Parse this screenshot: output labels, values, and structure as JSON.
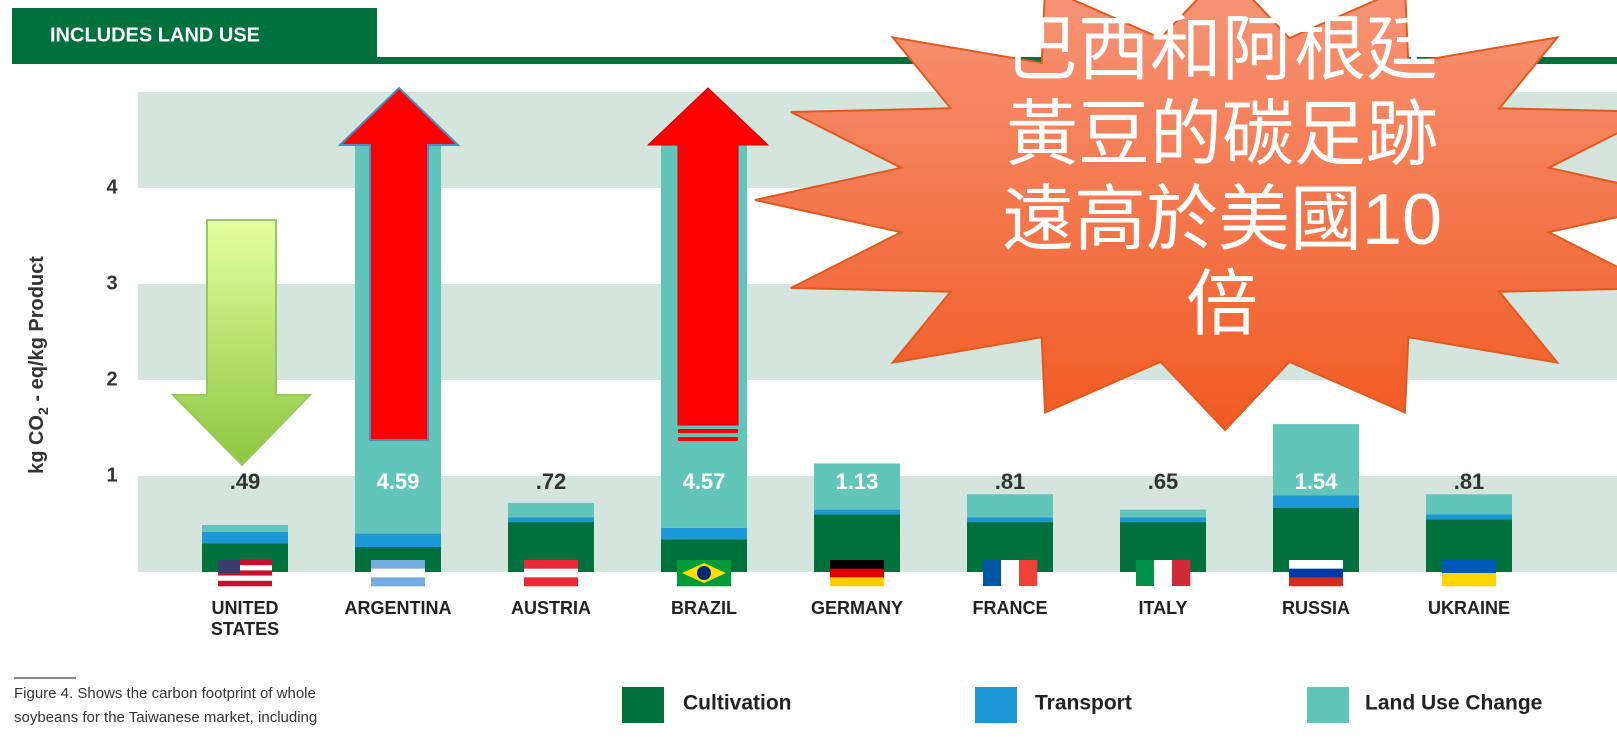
{
  "header": "INCLUDES LAND USE",
  "chart_data": {
    "type": "stacked_bar",
    "ylabel": [
      "kg CO",
      "2",
      " - eq/kg Product"
    ],
    "categories": [
      [
        "UNITED",
        "STATES"
      ],
      [
        "ARGENTINA"
      ],
      [
        "AUSTRIA"
      ],
      [
        "BRAZIL"
      ],
      [
        "GERMANY"
      ],
      [
        "FRANCE"
      ],
      [
        "ITALY"
      ],
      [
        "RUSSIA"
      ],
      [
        "UKRAINE"
      ]
    ],
    "series": [
      {
        "name": "Cultivation",
        "color": "#00703c",
        "values": [
          0.3,
          0.26,
          0.52,
          0.34,
          0.6,
          0.52,
          0.52,
          0.67,
          0.55
        ]
      },
      {
        "name": "Transport",
        "color": "#1b98d5",
        "values": [
          0.12,
          0.14,
          0.05,
          0.12,
          0.05,
          0.05,
          0.05,
          0.13,
          0.05
        ]
      },
      {
        "name": "Land Use Change",
        "color": "#62c5b9",
        "values": [
          0.07,
          4.19,
          0.15,
          4.11,
          0.48,
          0.24,
          0.08,
          0.74,
          0.21
        ]
      }
    ],
    "totals": [
      0.49,
      4.59,
      0.72,
      4.57,
      1.13,
      0.81,
      0.65,
      1.54,
      0.81
    ],
    "total_labels": [
      ".49",
      "4.59",
      ".72",
      "4.57",
      "1.13",
      ".81",
      ".65",
      "1.54",
      ".81"
    ],
    "ylim": [
      0,
      5
    ],
    "yticks": [
      1,
      2,
      3,
      4
    ],
    "grid": "bands",
    "band_color": "#d3e5dd",
    "annotation": [
      "巴西和阿根廷",
      "黃豆的碳足跡",
      "遠高於美國10",
      "倍"
    ],
    "caption": [
      "Figure 4. Shows the carbon footprint of whole",
      "soybeans for the Taiwanese market, including"
    ]
  }
}
